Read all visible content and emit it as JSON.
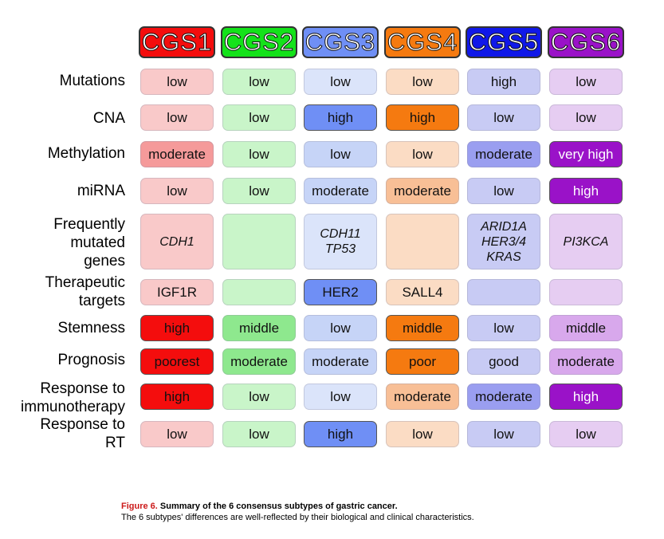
{
  "headers": [
    {
      "label": "CGS1",
      "color": "#f40d0d"
    },
    {
      "label": "CGS2",
      "color": "#14e21a"
    },
    {
      "label": "CGS3",
      "color": "#6f8ff5"
    },
    {
      "label": "CGS4",
      "color": "#f57a10"
    },
    {
      "label": "CGS5",
      "color": "#1018e8"
    },
    {
      "label": "CGS6",
      "color": "#9a12c8"
    }
  ],
  "rows": [
    {
      "label": "Mutations",
      "cells": [
        {
          "text": "low",
          "fill": "#f9c9c9"
        },
        {
          "text": "low",
          "fill": "#c9f5c9"
        },
        {
          "text": "low",
          "fill": "#dbe4fa"
        },
        {
          "text": "low",
          "fill": "#fbdcc4"
        },
        {
          "text": "high",
          "fill": "#c8cbf4"
        },
        {
          "text": "low",
          "fill": "#e6cdf2"
        }
      ]
    },
    {
      "label": "CNA",
      "cells": [
        {
          "text": "low",
          "fill": "#f9c9c9"
        },
        {
          "text": "low",
          "fill": "#c9f5c9"
        },
        {
          "text": "high",
          "fill": "#6f8ff5",
          "strong": true
        },
        {
          "text": "high",
          "fill": "#f57a10",
          "strong": true
        },
        {
          "text": "low",
          "fill": "#c8cbf4"
        },
        {
          "text": "low",
          "fill": "#e6cdf2"
        }
      ]
    },
    {
      "label": "Methylation",
      "cells": [
        {
          "text": "moderate",
          "fill": "#f59a9a"
        },
        {
          "text": "low",
          "fill": "#c9f5c9"
        },
        {
          "text": "low",
          "fill": "#c6d4f7"
        },
        {
          "text": "low",
          "fill": "#fbdcc4"
        },
        {
          "text": "moderate",
          "fill": "#9a9ef0"
        },
        {
          "text": "very high",
          "fill": "#9a12c8",
          "strong": true,
          "white": true
        }
      ]
    },
    {
      "label": "miRNA",
      "cells": [
        {
          "text": "low",
          "fill": "#f9c9c9"
        },
        {
          "text": "low",
          "fill": "#c9f5c9"
        },
        {
          "text": "moderate",
          "fill": "#c6d4f7"
        },
        {
          "text": "moderate",
          "fill": "#f8bf96"
        },
        {
          "text": "low",
          "fill": "#c8cbf4"
        },
        {
          "text": "high",
          "fill": "#9a12c8",
          "strong": true,
          "white": true
        }
      ]
    },
    {
      "label": "Frequently mutated genes",
      "cells": [
        {
          "text": "CDH1",
          "fill": "#f9c9c9",
          "italic": true
        },
        {
          "text": "",
          "fill": "#c9f5c9"
        },
        {
          "text": "CDH11 TP53",
          "fill": "#dbe4fa",
          "italic": true
        },
        {
          "text": "",
          "fill": "#fbdcc4"
        },
        {
          "text": "ARID1A HER3/4 KRAS",
          "fill": "#c8cbf4",
          "italic": true
        },
        {
          "text": "PI3KCA",
          "fill": "#e6cdf2",
          "italic": true
        }
      ]
    },
    {
      "label": "Therapeutic targets",
      "cells": [
        {
          "text": "IGF1R",
          "fill": "#f9c9c9"
        },
        {
          "text": "",
          "fill": "#c9f5c9"
        },
        {
          "text": "HER2",
          "fill": "#6f8ff5",
          "strong": true
        },
        {
          "text": "SALL4",
          "fill": "#fbdcc4"
        },
        {
          "text": "",
          "fill": "#c8cbf4"
        },
        {
          "text": "",
          "fill": "#e6cdf2"
        }
      ]
    },
    {
      "label": "Stemness",
      "cells": [
        {
          "text": "high",
          "fill": "#f40d0d",
          "strong": true
        },
        {
          "text": "middle",
          "fill": "#8ee88e"
        },
        {
          "text": "low",
          "fill": "#c6d4f7"
        },
        {
          "text": "middle",
          "fill": "#f57a10",
          "strong": true
        },
        {
          "text": "low",
          "fill": "#c8cbf4"
        },
        {
          "text": "middle",
          "fill": "#d8a8ec"
        }
      ]
    },
    {
      "label": "Prognosis",
      "cells": [
        {
          "text": "poorest",
          "fill": "#f40d0d",
          "strong": true
        },
        {
          "text": "moderate",
          "fill": "#8ee88e"
        },
        {
          "text": "moderate",
          "fill": "#c6d4f7"
        },
        {
          "text": "poor",
          "fill": "#f57a10",
          "strong": true
        },
        {
          "text": "good",
          "fill": "#c8cbf4"
        },
        {
          "text": "moderate",
          "fill": "#d8a8ec"
        }
      ]
    },
    {
      "label": "Response to immunotherapy",
      "cells": [
        {
          "text": "high",
          "fill": "#f40d0d",
          "strong": true
        },
        {
          "text": "low",
          "fill": "#c9f5c9"
        },
        {
          "text": "low",
          "fill": "#dbe4fa"
        },
        {
          "text": "moderate",
          "fill": "#f8bf96"
        },
        {
          "text": "moderate",
          "fill": "#9a9ef0"
        },
        {
          "text": "high",
          "fill": "#9a12c8",
          "strong": true,
          "white": true
        }
      ]
    },
    {
      "label": "Response to RT",
      "cells": [
        {
          "text": "low",
          "fill": "#f9c9c9"
        },
        {
          "text": "low",
          "fill": "#c9f5c9"
        },
        {
          "text": "high",
          "fill": "#6f8ff5",
          "strong": true
        },
        {
          "text": "low",
          "fill": "#fbdcc4"
        },
        {
          "text": "low",
          "fill": "#c8cbf4"
        },
        {
          "text": "low",
          "fill": "#e6cdf2"
        }
      ]
    }
  ],
  "caption": {
    "label": "Figure 6.",
    "title": "Summary of the 6 consensus subtypes of gastric cancer.",
    "text": "The 6 subtypes' differences are well-reflected by their biological and clinical characteristics."
  }
}
